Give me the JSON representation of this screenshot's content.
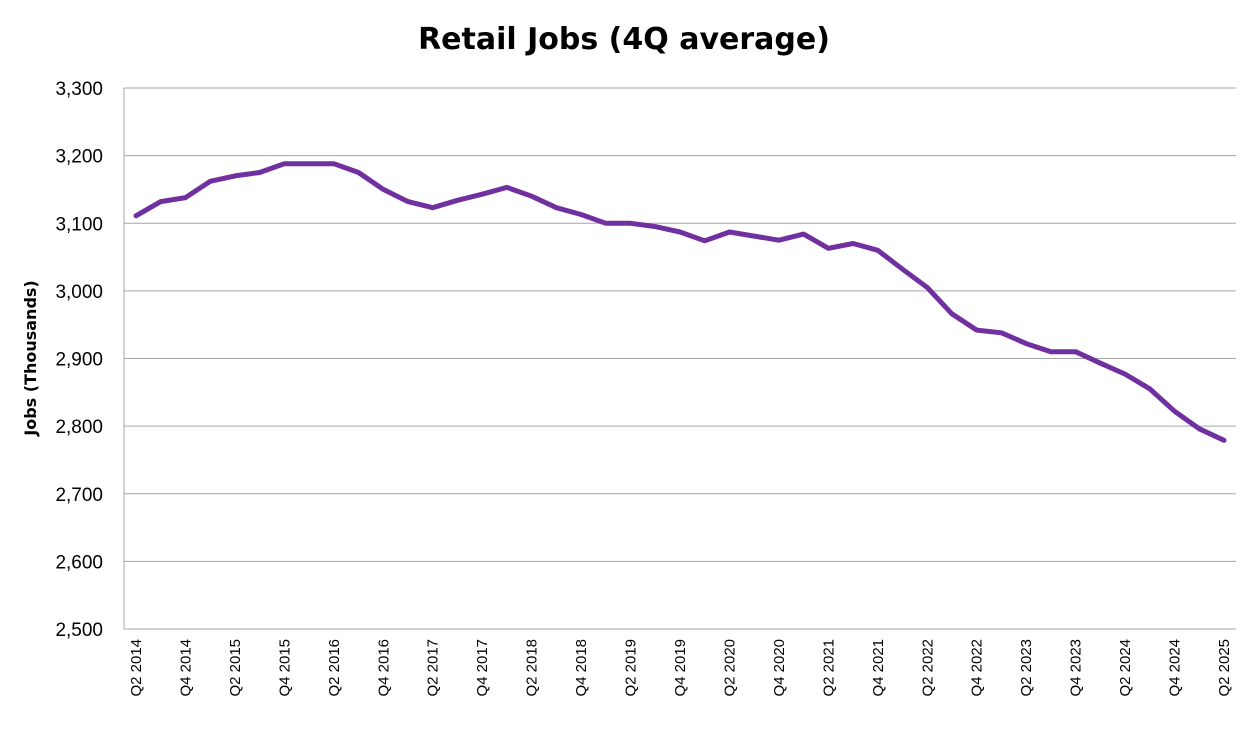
{
  "chart_data": {
    "type": "line",
    "title": "Retail Jobs (4Q average)",
    "xlabel": "",
    "ylabel": "Jobs (Thousands)",
    "ylim": [
      2500,
      3300
    ],
    "yticks": [
      "2,500",
      "2,600",
      "2,700",
      "2,800",
      "2,900",
      "3,000",
      "3,100",
      "3,200",
      "3,300"
    ],
    "grid": true,
    "legend": "none",
    "x": [
      "Q2 2014",
      "Q3 2014",
      "Q4 2014",
      "Q1 2015",
      "Q2 2015",
      "Q3 2015",
      "Q4 2015",
      "Q1 2016",
      "Q2 2016",
      "Q3 2016",
      "Q4 2016",
      "Q1 2017",
      "Q2 2017",
      "Q3 2017",
      "Q4 2017",
      "Q1 2018",
      "Q2 2018",
      "Q3 2018",
      "Q4 2018",
      "Q1 2019",
      "Q2 2019",
      "Q3 2019",
      "Q4 2019",
      "Q1 2020",
      "Q2 2020",
      "Q3 2020",
      "Q4 2020",
      "Q1 2021",
      "Q2 2021",
      "Q3 2021",
      "Q4 2021",
      "Q1 2022",
      "Q2 2022",
      "Q3 2022",
      "Q4 2022",
      "Q1 2023",
      "Q2 2023",
      "Q3 2023",
      "Q4 2023",
      "Q1 2024",
      "Q2 2024",
      "Q3 2024",
      "Q4 2024",
      "Q1 2025",
      "Q2 2025"
    ],
    "x_tick_labels": [
      "Q2 2014",
      "Q4 2014",
      "Q2 2015",
      "Q4 2015",
      "Q2 2016",
      "Q4 2016",
      "Q2 2017",
      "Q4 2017",
      "Q2 2018",
      "Q4 2018",
      "Q2 2019",
      "Q4 2019",
      "Q2 2020",
      "Q4 2020",
      "Q2 2021",
      "Q4 2021",
      "Q2 2022",
      "Q4 2022",
      "Q2 2023",
      "Q4 2023",
      "Q2 2024",
      "Q4 2024",
      "Q2 2025"
    ],
    "series": [
      {
        "color": "#7030a0",
        "values": [
          3111,
          3132,
          3138,
          3162,
          3170,
          3175,
          3188,
          3188,
          3188,
          3175,
          3150,
          3132,
          3123,
          3134,
          3143,
          3153,
          3140,
          3123,
          3113,
          3100,
          3100,
          3095,
          3087,
          3074,
          3087,
          3081,
          3075,
          3084,
          3063,
          3070,
          3060,
          3032,
          3005,
          2966,
          2942,
          2938,
          2922,
          2910,
          2910,
          2893,
          2877,
          2855,
          2822,
          2796,
          2779
        ]
      }
    ]
  }
}
